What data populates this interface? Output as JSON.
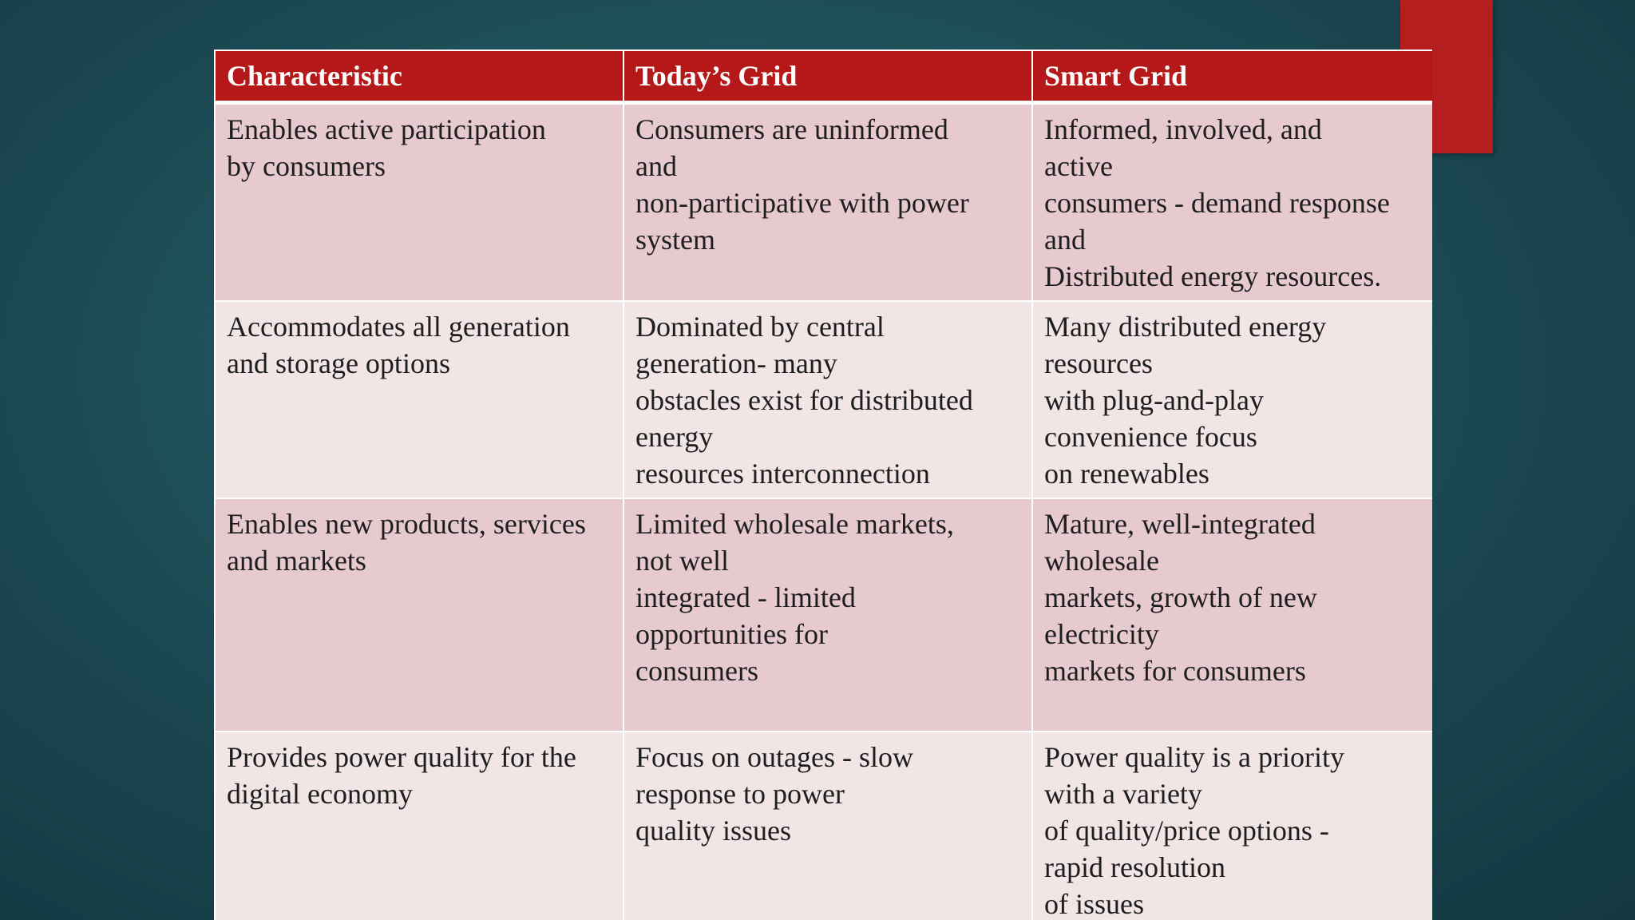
{
  "slide": {
    "accent_color": "#b51818",
    "background_color": "#1f4f58"
  },
  "table": {
    "headers": [
      "Characteristic",
      "Today’s Grid",
      "Smart  Grid"
    ],
    "rows": [
      [
        "Enables active participation\nby consumers",
        "Consumers are uninformed\nand\nnon-participative with power\nsystem",
        "Informed, involved, and\nactive\nconsumers - demand response\nand\nDistributed energy resources."
      ],
      [
        "Accommodates all generation\nand storage options",
        "Dominated by central\ngeneration- many\nobstacles exist for distributed\nenergy\nresources interconnection",
        "Many distributed energy\nresources\nwith plug-and-play\nconvenience focus\non renewables"
      ],
      [
        "Enables new products, services\nand markets",
        "Limited wholesale markets,\nnot well\nintegrated - limited\nopportunities for\nconsumers",
        "Mature, well-integrated\nwholesale\nmarkets, growth of new\nelectricity\nmarkets for consumers"
      ],
      [
        "Provides power quality for the\ndigital economy",
        "Focus on outages - slow\nresponse to power\nquality issues",
        "Power quality is a priority\nwith a variety\nof quality/price options -\nrapid resolution\nof issues"
      ]
    ]
  }
}
